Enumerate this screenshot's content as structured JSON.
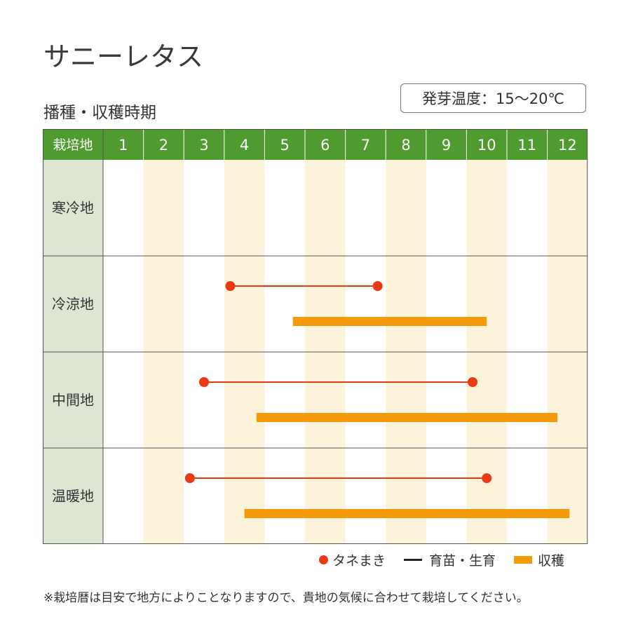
{
  "title": "サニーレタス",
  "subtitle": "播種・収穫時期",
  "germination_temp": "発芽温度：15〜20℃",
  "legend": {
    "sowing": "タネまき",
    "growing": "育苗・生育",
    "harvest": "収穫"
  },
  "note": "※栽培暦は目安で地方によりことなりますので、貴地の気候に合わせて栽培してください。",
  "colors": {
    "header_green": "#4f9b2f",
    "row_label_bg": "#dde6d2",
    "alt_column": "#fdf3da",
    "sowing_red": "#e93a14",
    "harvest_orange": "#f59b0a"
  },
  "chart_data": {
    "type": "gantt",
    "corner_label": "栽培地",
    "months": [
      "1",
      "2",
      "3",
      "4",
      "5",
      "6",
      "7",
      "8",
      "9",
      "10",
      "11",
      "12"
    ],
    "regions": [
      {
        "name": "寒冷地",
        "sowing": null,
        "harvest": null
      },
      {
        "name": "冷涼地",
        "sowing": [
          4.15,
          7.8
        ],
        "harvest": [
          5.7,
          10.5
        ]
      },
      {
        "name": "中間地",
        "sowing": [
          3.5,
          10.15
        ],
        "harvest": [
          4.8,
          12.25
        ]
      },
      {
        "name": "温暖地",
        "sowing": [
          3.15,
          10.5
        ],
        "harvest": [
          4.5,
          12.55
        ]
      }
    ]
  }
}
